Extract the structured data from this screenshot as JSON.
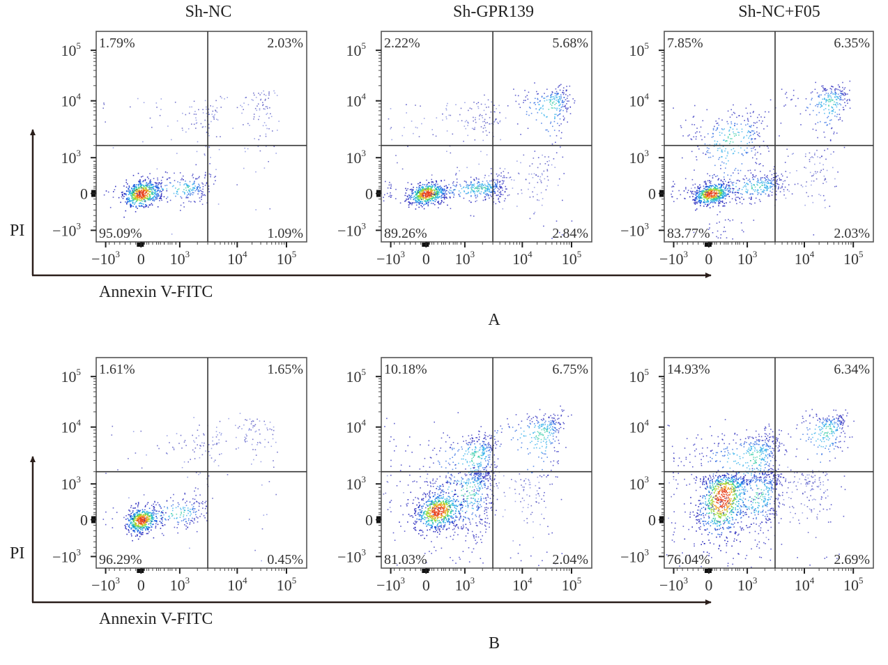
{
  "chart_data": {
    "type": "scatter",
    "subtype": "flow-cytometry-quadrant-density",
    "x_axis_label": "Annexin V-FITC",
    "y_axis_label": "PI",
    "x_ticks": [
      {
        "label": "−10",
        "exp": "3",
        "value": -1000
      },
      {
        "label": "0",
        "exp": "",
        "value": 0
      },
      {
        "label": "10",
        "exp": "3",
        "value": 1000
      },
      {
        "label": "10",
        "exp": "4",
        "value": 10000
      },
      {
        "label": "10",
        "exp": "5",
        "value": 100000
      }
    ],
    "y_ticks": [
      {
        "label": "10",
        "exp": "5",
        "value": 100000
      },
      {
        "label": "10",
        "exp": "4",
        "value": 10000
      },
      {
        "label": "10",
        "exp": "3",
        "value": 1000
      },
      {
        "label": "0",
        "exp": "",
        "value": 0
      },
      {
        "label": "−10",
        "exp": "3",
        "value": -1000
      }
    ],
    "quadrant_gate": {
      "x": 3000,
      "y": 2000
    },
    "scale": "biexponential",
    "rows": [
      {
        "panel_label": "A",
        "panels": [
          {
            "title": "Sh-NC",
            "quadrants": {
              "upper_left": "1.79%",
              "upper_right": "2.03%",
              "lower_left": "95.09%",
              "lower_right": "1.09%"
            },
            "clusters": [
              {
                "cx": 0,
                "cy": 0,
                "sx": 250,
                "sy": 180,
                "n": 520,
                "density": "high"
              },
              {
                "cx": 1200,
                "cy": 150,
                "sx": 900,
                "sy": 200,
                "n": 220,
                "density": "medium"
              },
              {
                "cx": 2500,
                "cy": 5000,
                "sx": 1500,
                "sy": 2500,
                "n": 90,
                "density": "low"
              },
              {
                "cx": 25000,
                "cy": 8000,
                "sx": 20000,
                "sy": 5000,
                "n": 120,
                "density": "low"
              }
            ]
          },
          {
            "title": "Sh-GPR139",
            "quadrants": {
              "upper_left": "2.22%",
              "upper_right": "5.68%",
              "lower_left": "89.26%",
              "lower_right": "2.84%"
            },
            "clusters": [
              {
                "cx": 0,
                "cy": 0,
                "sx": 250,
                "sy": 150,
                "n": 500,
                "density": "high"
              },
              {
                "cx": 1800,
                "cy": 150,
                "sx": 1500,
                "sy": 180,
                "n": 380,
                "density": "medium"
              },
              {
                "cx": 1500,
                "cy": 5000,
                "sx": 1200,
                "sy": 2500,
                "n": 130,
                "density": "low"
              },
              {
                "cx": 40000,
                "cy": 9000,
                "sx": 25000,
                "sy": 5000,
                "n": 260,
                "density": "medium"
              },
              {
                "cx": 15000,
                "cy": 500,
                "sx": 15000,
                "sy": 400,
                "n": 80,
                "density": "low"
              }
            ]
          },
          {
            "title": "Sh-NC+F05",
            "quadrants": {
              "upper_left": "7.85%",
              "upper_right": "6.35%",
              "lower_left": "83.77%",
              "lower_right": "2.03%"
            },
            "clusters": [
              {
                "cx": 50,
                "cy": 0,
                "sx": 250,
                "sy": 140,
                "n": 520,
                "density": "high"
              },
              {
                "cx": 1500,
                "cy": 200,
                "sx": 1300,
                "sy": 200,
                "n": 300,
                "density": "medium"
              },
              {
                "cx": 600,
                "cy": 2500,
                "sx": 600,
                "sy": 2000,
                "n": 320,
                "density": "medium"
              },
              {
                "cx": 35000,
                "cy": 10000,
                "sx": 20000,
                "sy": 5000,
                "n": 260,
                "density": "medium"
              },
              {
                "cx": 15000,
                "cy": 600,
                "sx": 12000,
                "sy": 500,
                "n": 80,
                "density": "low"
              }
            ]
          }
        ]
      },
      {
        "panel_label": "B",
        "panels": [
          {
            "title": "",
            "quadrants": {
              "upper_left": "1.61%",
              "upper_right": "1.65%",
              "lower_left": "96.29%",
              "lower_right": "0.45%"
            },
            "clusters": [
              {
                "cx": 0,
                "cy": 0,
                "sx": 220,
                "sy": 170,
                "n": 480,
                "density": "high"
              },
              {
                "cx": 1000,
                "cy": 200,
                "sx": 800,
                "sy": 220,
                "n": 200,
                "density": "medium"
              },
              {
                "cx": 2000,
                "cy": 4000,
                "sx": 1500,
                "sy": 2500,
                "n": 90,
                "density": "low"
              },
              {
                "cx": 20000,
                "cy": 7000,
                "sx": 18000,
                "sy": 5000,
                "n": 110,
                "density": "low"
              }
            ]
          },
          {
            "title": "",
            "quadrants": {
              "upper_left": "10.18%",
              "upper_right": "6.75%",
              "lower_left": "81.03%",
              "lower_right": "2.04%"
            },
            "clusters": [
              {
                "cx": 300,
                "cy": 250,
                "sx": 300,
                "sy": 250,
                "n": 600,
                "density": "high"
              },
              {
                "cx": 1200,
                "cy": 800,
                "sx": 900,
                "sy": 700,
                "n": 450,
                "density": "medium"
              },
              {
                "cx": 1500,
                "cy": 3500,
                "sx": 1000,
                "sy": 2000,
                "n": 380,
                "density": "medium"
              },
              {
                "cx": 25000,
                "cy": 8000,
                "sx": 20000,
                "sy": 5000,
                "n": 320,
                "density": "medium"
              },
              {
                "cx": 10000,
                "cy": 700,
                "sx": 9000,
                "sy": 500,
                "n": 90,
                "density": "low"
              }
            ]
          },
          {
            "title": "",
            "quadrants": {
              "upper_left": "14.93%",
              "upper_right": "6.34%",
              "lower_left": "76.04%",
              "lower_right": "2.69%"
            },
            "clusters": [
              {
                "cx": 350,
                "cy": 600,
                "sx": 320,
                "sy": 500,
                "n": 700,
                "density": "high"
              },
              {
                "cx": 1500,
                "cy": 700,
                "sx": 1100,
                "sy": 600,
                "n": 450,
                "density": "medium"
              },
              {
                "cx": 1300,
                "cy": 3500,
                "sx": 1100,
                "sy": 2200,
                "n": 450,
                "density": "medium"
              },
              {
                "cx": 30000,
                "cy": 9000,
                "sx": 20000,
                "sy": 5000,
                "n": 300,
                "density": "medium"
              },
              {
                "cx": 9000,
                "cy": 900,
                "sx": 8000,
                "sy": 600,
                "n": 130,
                "density": "low"
              }
            ]
          }
        ]
      }
    ]
  }
}
